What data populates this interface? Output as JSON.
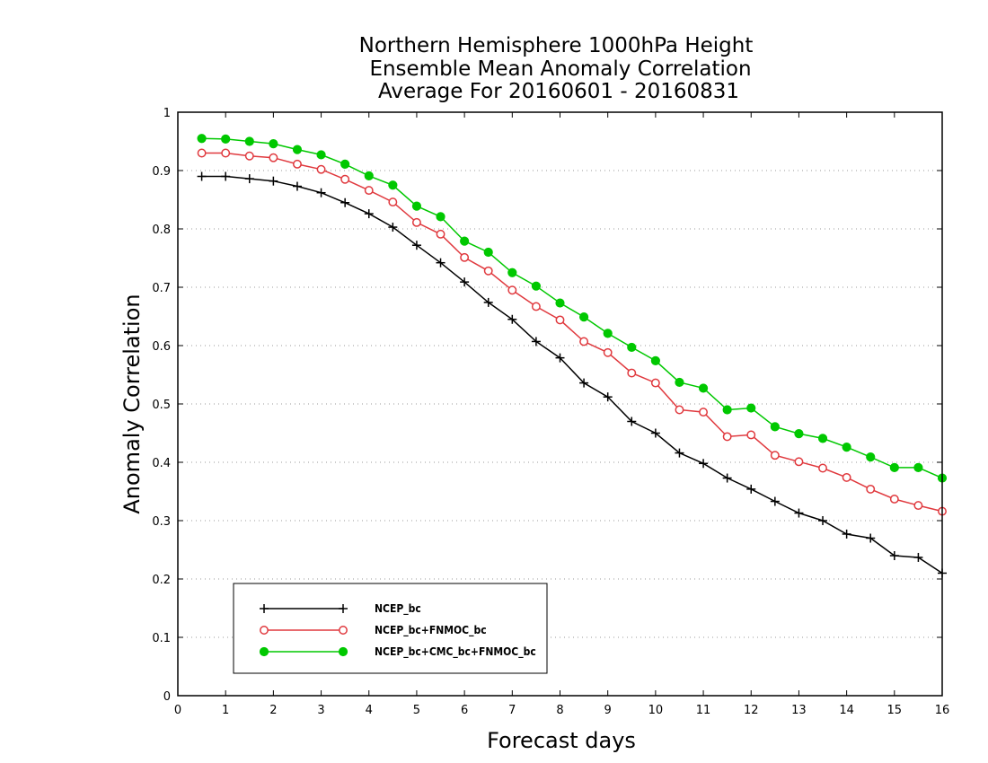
{
  "chart_data": {
    "type": "line",
    "title": [
      "Northern Hemisphere 1000hPa Height",
      "Ensemble Mean Anomaly Correlation",
      "Average For 20160601 - 20160831"
    ],
    "xlabel": "Forecast days",
    "ylabel": "Anomaly Correlation",
    "xlim": [
      0,
      16
    ],
    "ylim": [
      0,
      1
    ],
    "xticks": [
      "0",
      "1",
      "2",
      "3",
      "4",
      "5",
      "6",
      "7",
      "8",
      "9",
      "10",
      "11",
      "12",
      "13",
      "14",
      "15",
      "16"
    ],
    "yticks": [
      "0",
      "0.1",
      "0.2",
      "0.3",
      "0.4",
      "0.5",
      "0.6",
      "0.7",
      "0.8",
      "0.9",
      "1"
    ],
    "grid": "horizontal dotted",
    "legend_position": "bottom-left",
    "x": [
      0.5,
      1,
      1.5,
      2,
      2.5,
      3,
      3.5,
      4,
      4.5,
      5,
      5.5,
      6,
      6.5,
      7,
      7.5,
      8,
      8.5,
      9,
      9.5,
      10,
      10.5,
      11,
      11.5,
      12,
      12.5,
      13,
      13.5,
      14,
      14.5,
      15,
      15.5,
      16
    ],
    "series": [
      {
        "name": "NCEP_bc",
        "color": "#000000",
        "marker": "plus",
        "values": [
          0.89,
          0.89,
          0.886,
          0.882,
          0.873,
          0.862,
          0.845,
          0.826,
          0.803,
          0.772,
          0.742,
          0.709,
          0.674,
          0.645,
          0.607,
          0.579,
          0.536,
          0.512,
          0.47,
          0.45,
          0.416,
          0.398,
          0.373,
          0.354,
          0.333,
          0.313,
          0.3,
          0.277,
          0.27,
          0.24,
          0.237,
          0.21
        ]
      },
      {
        "name": "NCEP_bc+FNMOC_bc",
        "color": "#e0393e",
        "marker": "open-circle",
        "values": [
          0.93,
          0.93,
          0.925,
          0.922,
          0.911,
          0.902,
          0.885,
          0.866,
          0.846,
          0.811,
          0.791,
          0.751,
          0.728,
          0.695,
          0.667,
          0.644,
          0.607,
          0.588,
          0.553,
          0.536,
          0.49,
          0.486,
          0.444,
          0.447,
          0.412,
          0.401,
          0.39,
          0.374,
          0.354,
          0.337,
          0.326,
          0.316
        ]
      },
      {
        "name": "NCEP_bc+CMC_bc+FNMOC_bc",
        "color": "#00c800",
        "marker": "filled-circle",
        "values": [
          0.955,
          0.954,
          0.95,
          0.946,
          0.936,
          0.927,
          0.911,
          0.891,
          0.875,
          0.839,
          0.821,
          0.779,
          0.76,
          0.725,
          0.702,
          0.673,
          0.649,
          0.621,
          0.597,
          0.574,
          0.537,
          0.527,
          0.49,
          0.493,
          0.461,
          0.449,
          0.441,
          0.426,
          0.409,
          0.391,
          0.391,
          0.373
        ]
      }
    ]
  }
}
